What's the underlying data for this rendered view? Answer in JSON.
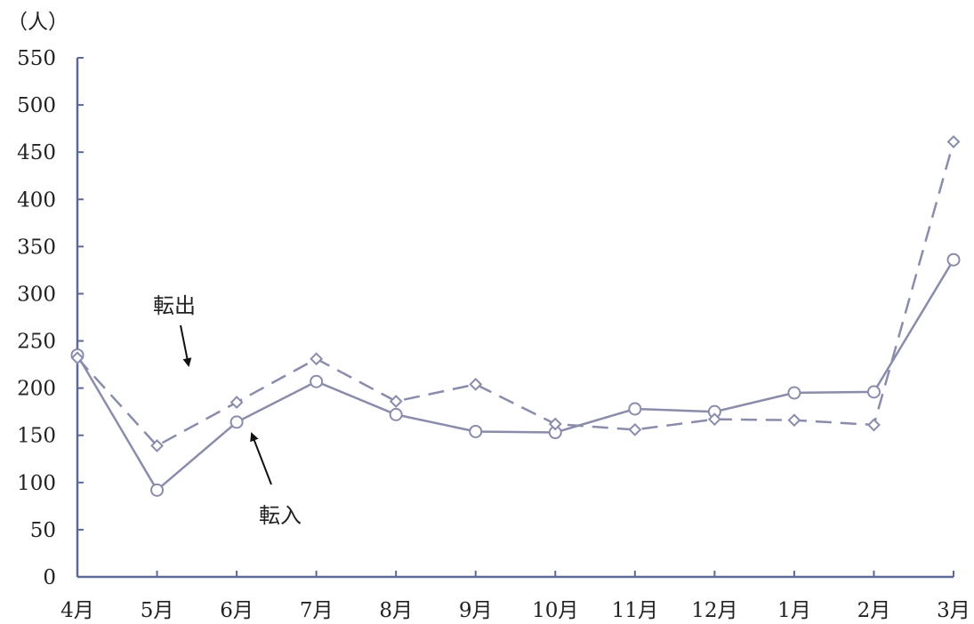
{
  "chart_data": {
    "type": "line",
    "unit_label": "（人）",
    "categories": [
      "4月",
      "5月",
      "6月",
      "7月",
      "8月",
      "9月",
      "10月",
      "11月",
      "12月",
      "1月",
      "2月",
      "3月"
    ],
    "ylim": [
      0,
      550
    ],
    "yticks": [
      0,
      50,
      100,
      150,
      200,
      250,
      300,
      350,
      400,
      450,
      500,
      550
    ],
    "grid": false,
    "series": [
      {
        "name": "転入",
        "style": "solid",
        "marker": "circle",
        "values": [
          235,
          92,
          164,
          207,
          172,
          154,
          153,
          178,
          175,
          195,
          196,
          336
        ]
      },
      {
        "name": "転出",
        "style": "dashed",
        "marker": "diamond",
        "values": [
          232,
          139,
          185,
          231,
          186,
          204,
          162,
          156,
          167,
          166,
          161,
          461
        ]
      }
    ],
    "annotations": [
      {
        "text": "転出",
        "series": "転出"
      },
      {
        "text": "転入",
        "series": "転入"
      }
    ],
    "colors": {
      "line": "#8a8cac",
      "axis": "#5d6a97",
      "arrow": "#111111"
    }
  }
}
